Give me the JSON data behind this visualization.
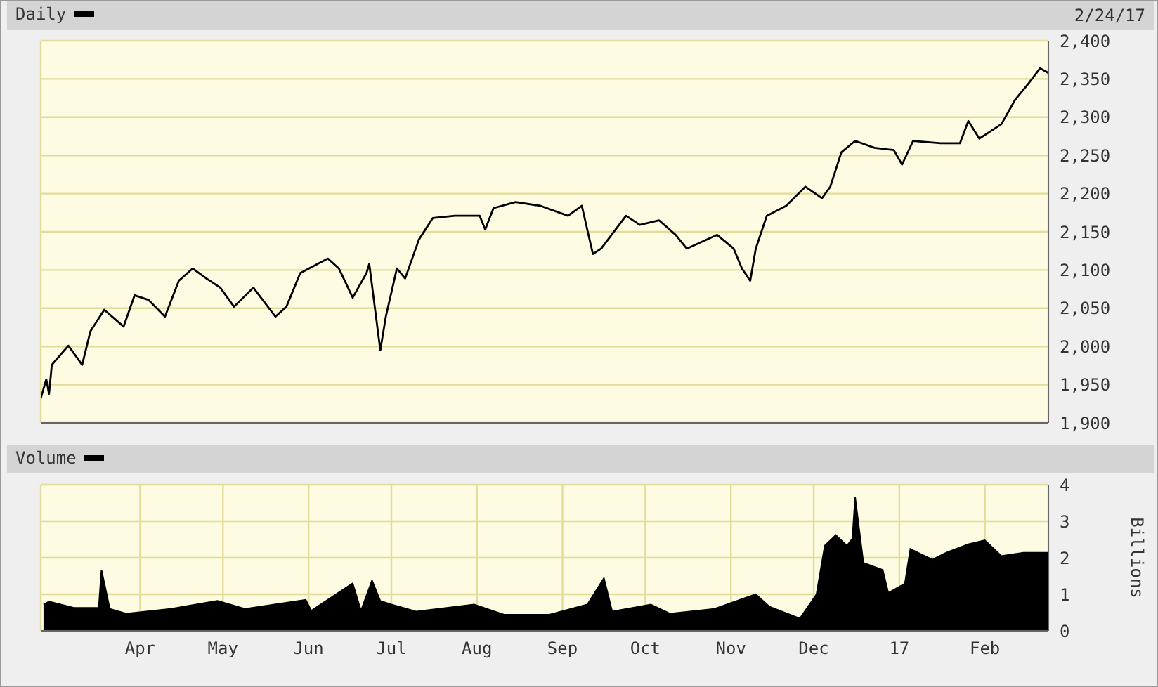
{
  "chart_data": [
    {
      "type": "line",
      "legend": "top left",
      "grid": true,
      "tick_labels": "y",
      "annotations": [
        "2/24/17"
      ],
      "xlim": [
        "2016-02-25",
        "2017-02-24"
      ],
      "xticks": [
        {
          "value": "2016-04-01",
          "label": null
        },
        {
          "value": "2016-05-01",
          "label": null
        },
        {
          "value": "2016-06-01",
          "label": null
        },
        {
          "value": "2016-07-01",
          "label": null
        },
        {
          "value": "2016-08-01",
          "label": null
        },
        {
          "value": "2016-09-01",
          "label": null
        },
        {
          "value": "2016-10-01",
          "label": null
        },
        {
          "value": "2016-11-01",
          "label": null
        },
        {
          "value": "2016-12-01",
          "label": null
        },
        {
          "value": "2017-01-01",
          "label": null
        },
        {
          "value": "2017-02-01",
          "label": null
        }
      ],
      "ylim": [
        1900,
        2400
      ],
      "yticks": [
        {
          "value": 1900,
          "label": "1,900"
        },
        {
          "value": 1950,
          "label": "1,950"
        },
        {
          "value": 2000,
          "label": "2,000"
        },
        {
          "value": 2050,
          "label": "2,050"
        },
        {
          "value": 2100,
          "label": "2,100"
        },
        {
          "value": 2150,
          "label": "2,150"
        },
        {
          "value": 2200,
          "label": "2,200"
        },
        {
          "value": 2250,
          "label": "2,250"
        },
        {
          "value": 2300,
          "label": "2,300"
        },
        {
          "value": 2350,
          "label": "2,350"
        },
        {
          "value": 2400,
          "label": "2,400"
        }
      ],
      "series": [
        {
          "name": "Daily",
          "color": "#000000",
          "x": [
            "2016-02-25",
            "2016-02-27",
            "2016-02-28",
            "2016-02-29",
            "2016-03-06",
            "2016-03-11",
            "2016-03-14",
            "2016-03-19",
            "2016-03-26",
            "2016-03-30",
            "2016-04-04",
            "2016-04-10",
            "2016-04-15",
            "2016-04-20",
            "2016-04-25",
            "2016-04-30",
            "2016-05-05",
            "2016-05-12",
            "2016-05-20",
            "2016-05-24",
            "2016-05-29",
            "2016-06-08",
            "2016-06-12",
            "2016-06-17",
            "2016-06-22",
            "2016-06-23",
            "2016-06-27",
            "2016-06-29",
            "2016-07-03",
            "2016-07-06",
            "2016-07-11",
            "2016-07-16",
            "2016-07-24",
            "2016-08-02",
            "2016-08-04",
            "2016-08-07",
            "2016-08-15",
            "2016-08-24",
            "2016-09-03",
            "2016-09-08",
            "2016-09-12",
            "2016-09-15",
            "2016-09-24",
            "2016-09-29",
            "2016-10-06",
            "2016-10-12",
            "2016-10-16",
            "2016-10-27",
            "2016-11-02",
            "2016-11-05",
            "2016-11-08",
            "2016-11-10",
            "2016-11-14",
            "2016-11-21",
            "2016-11-28",
            "2016-12-04",
            "2016-12-07",
            "2016-12-11",
            "2016-12-16",
            "2016-12-23",
            "2016-12-30",
            "2017-01-02",
            "2017-01-06",
            "2017-01-16",
            "2017-01-23",
            "2017-01-26",
            "2017-01-30",
            "2017-02-02",
            "2017-02-07",
            "2017-02-12",
            "2017-02-17",
            "2017-02-21",
            "2017-02-24"
          ],
          "values": [
            1932,
            1957,
            1938,
            1976,
            2001,
            1976,
            2020,
            2048,
            2026,
            2067,
            2061,
            2039,
            2086,
            2102,
            2089,
            2077,
            2052,
            2077,
            2039,
            2052,
            2096,
            2115,
            2102,
            2064,
            2096,
            2108,
            1995,
            2039,
            2102,
            2089,
            2140,
            2168,
            2171,
            2171,
            2153,
            2181,
            2189,
            2184,
            2171,
            2184,
            2121,
            2128,
            2171,
            2159,
            2165,
            2146,
            2128,
            2146,
            2128,
            2102,
            2086,
            2128,
            2171,
            2184,
            2209,
            2194,
            2209,
            2254,
            2269,
            2260,
            2257,
            2238,
            2269,
            2266,
            2266,
            2295,
            2272,
            2279,
            2291,
            2323,
            2345,
            2364,
            2358
          ]
        }
      ]
    },
    {
      "type": "area",
      "legend": "top left",
      "grid": true,
      "ylabel": "Billions",
      "xlim": [
        "2016-02-25",
        "2017-02-24"
      ],
      "xticks": [
        {
          "value": "2016-04-01",
          "label": "Apr"
        },
        {
          "value": "2016-05-01",
          "label": "May"
        },
        {
          "value": "2016-06-01",
          "label": "Jun"
        },
        {
          "value": "2016-07-01",
          "label": "Jul"
        },
        {
          "value": "2016-08-01",
          "label": "Aug"
        },
        {
          "value": "2016-09-01",
          "label": "Sep"
        },
        {
          "value": "2016-10-01",
          "label": "Oct"
        },
        {
          "value": "2016-11-01",
          "label": "Nov"
        },
        {
          "value": "2016-12-01",
          "label": "Dec"
        },
        {
          "value": "2017-01-01",
          "label": "17"
        },
        {
          "value": "2017-02-01",
          "label": "Feb"
        }
      ],
      "ylim": [
        0,
        4
      ],
      "yticks": [
        0,
        1,
        2,
        3,
        4
      ],
      "series": [
        {
          "name": "Volume",
          "color": "#000000",
          "x": [
            "2016-02-26",
            "2016-02-28",
            "2016-03-08",
            "2016-03-17",
            "2016-03-18",
            "2016-03-21",
            "2016-03-27",
            "2016-04-12",
            "2016-04-29",
            "2016-05-09",
            "2016-05-31",
            "2016-06-02",
            "2016-06-17",
            "2016-06-20",
            "2016-06-24",
            "2016-06-27",
            "2016-07-01",
            "2016-07-10",
            "2016-07-31",
            "2016-08-11",
            "2016-08-27",
            "2016-09-10",
            "2016-09-16",
            "2016-09-19",
            "2016-10-03",
            "2016-10-10",
            "2016-10-26",
            "2016-11-10",
            "2016-11-15",
            "2016-11-26",
            "2016-12-02",
            "2016-12-05",
            "2016-12-09",
            "2016-12-13",
            "2016-12-15",
            "2016-12-16",
            "2016-12-19",
            "2016-12-26",
            "2016-12-28",
            "2017-01-03",
            "2017-01-05",
            "2017-01-13",
            "2017-01-18",
            "2017-01-26",
            "2017-02-01",
            "2017-02-07",
            "2017-02-15",
            "2017-02-24"
          ],
          "values": [
            0.72,
            0.8,
            0.63,
            0.63,
            1.67,
            0.6,
            0.47,
            0.6,
            0.82,
            0.6,
            0.85,
            0.55,
            1.3,
            0.55,
            1.38,
            0.82,
            0.72,
            0.53,
            0.72,
            0.44,
            0.44,
            0.72,
            1.44,
            0.53,
            0.72,
            0.47,
            0.6,
            1.0,
            0.66,
            0.34,
            1.0,
            2.33,
            2.62,
            2.33,
            2.52,
            3.66,
            1.86,
            1.67,
            1.04,
            1.29,
            2.24,
            1.95,
            2.14,
            2.37,
            2.48,
            2.05,
            2.14,
            2.14
          ]
        }
      ]
    }
  ]
}
